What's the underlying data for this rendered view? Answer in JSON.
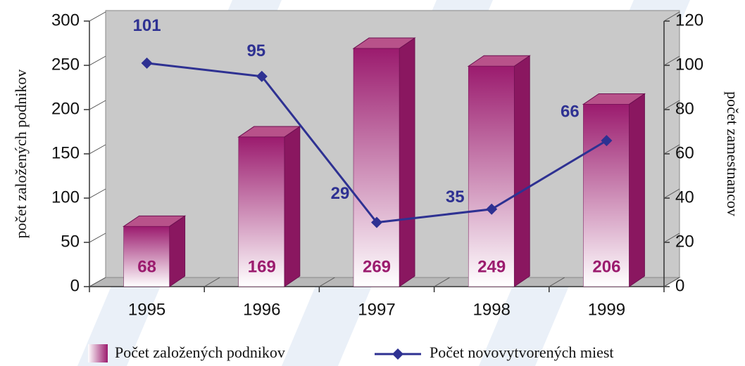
{
  "chart_data": {
    "type": "bar",
    "categories": [
      "1995",
      "1996",
      "1997",
      "1998",
      "1999"
    ],
    "series": [
      {
        "name": "Počet založených podnikov",
        "color": "#9b1b6e",
        "type": "bar",
        "values": [
          68,
          169,
          269,
          249,
          206
        ]
      },
      {
        "name": "Počet novovytvorených miest",
        "color": "#2e3192",
        "type": "line",
        "axis": "y2",
        "values": [
          101,
          95,
          29,
          35,
          66
        ]
      }
    ],
    "ylabel": "počet založených podnikov",
    "y2label": "počet zamestnancov",
    "ylim": [
      0,
      300
    ],
    "yticks": [
      0,
      50,
      100,
      150,
      200,
      250,
      300
    ],
    "y2lim": [
      0,
      120
    ],
    "y2ticks": [
      0,
      20,
      40,
      60,
      80,
      100,
      120
    ],
    "legend": "bottom"
  }
}
